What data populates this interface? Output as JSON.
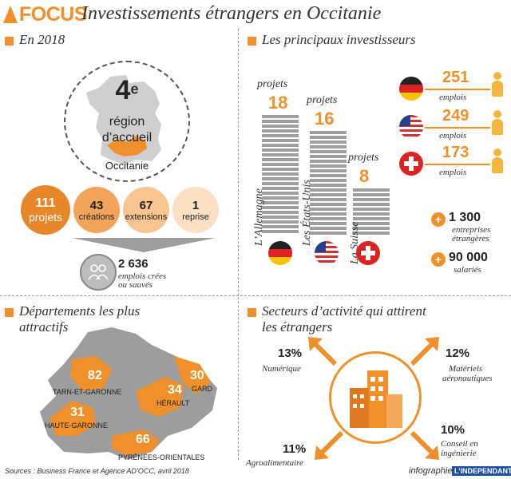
{
  "header": {
    "tag": "FOCUS",
    "title": "Investissements étrangers en Occitanie"
  },
  "section_2018": {
    "title": "En 2018",
    "rank_number": "4",
    "rank_sup": "e",
    "rank_line1": "région",
    "rank_line2": "d’accueil",
    "region_name": "Occitanie",
    "stats": [
      {
        "value": "111",
        "label": "projets"
      },
      {
        "value": "43",
        "label": "créations"
      },
      {
        "value": "67",
        "label": "extensions"
      },
      {
        "value": "1",
        "label": "reprise"
      }
    ],
    "jobs_value": "2 636",
    "jobs_label_1": "emplois crées",
    "jobs_label_2": "ou sauvés"
  },
  "investors": {
    "title": "Les principaux investisseurs",
    "countries": [
      {
        "name": "L’Allemagne",
        "projets_label": "projets",
        "projets": "18",
        "flag": "germany-flag-icon"
      },
      {
        "name": "Les États-Unis",
        "projets_label": "projets",
        "projets": "16",
        "flag": "usa-flag-icon"
      },
      {
        "name": "La Suisse",
        "projets_label": "projets",
        "projets": "8",
        "flag": "switzerland-flag-icon"
      }
    ],
    "jobs": [
      {
        "value": "251",
        "label": "emplois"
      },
      {
        "value": "249",
        "label": "emplois"
      },
      {
        "value": "173",
        "label": "emplois"
      }
    ],
    "companies_value": "1 300",
    "companies_label_1": "entreprises",
    "companies_label_2": "étrangères",
    "employees_value": "90 000",
    "employees_label": "salariés",
    "colors": {
      "accent": "#f0902a",
      "person": "#f4b63c",
      "bar": "#9e9e9e"
    }
  },
  "departements": {
    "title_line1": "Départements les plus",
    "title_line2": "attractifs",
    "items": [
      {
        "value": "82",
        "name": "TARN-ET-GARONNE"
      },
      {
        "value": "31",
        "name": "HAUTE-GARONNE"
      },
      {
        "value": "34",
        "name": "HÉRAULT"
      },
      {
        "value": "30",
        "name": "GARD"
      },
      {
        "value": "66",
        "name": "PYRÉNÉES-ORIENTALES"
      }
    ]
  },
  "secteurs": {
    "title_line1": "Secteurs d’activité qui attirent",
    "title_line2": "les étrangers",
    "items": [
      {
        "pct": "13%",
        "label_1": "Numérique",
        "label_2": ""
      },
      {
        "pct": "12%",
        "label_1": "Matériels",
        "label_2": "aéronautiques"
      },
      {
        "pct": "10%",
        "label_1": "Conseil en",
        "label_2": "ingénierie"
      },
      {
        "pct": "11%",
        "label_1": "Agroalimentaire",
        "label_2": ""
      }
    ]
  },
  "footer": {
    "sources": "Sources : Business France et Agence AD’OCC, avril 2018",
    "credit": "infographie",
    "brand": "L’INDEPENDANT"
  }
}
